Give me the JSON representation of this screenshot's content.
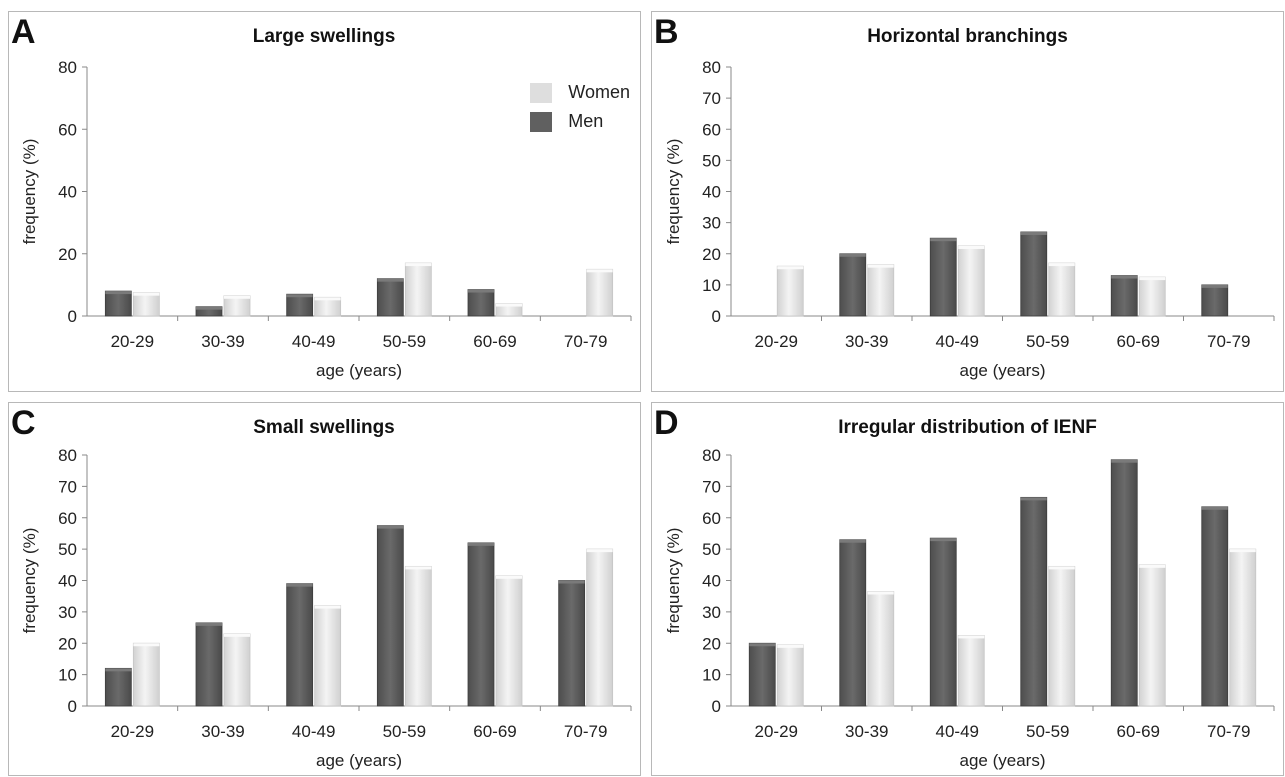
{
  "legend": {
    "women": "Women",
    "men": "Men"
  },
  "colors": {
    "men": "#606060",
    "women": "#e6e6e6"
  },
  "chart_data": [
    {
      "id": "A",
      "type": "bar",
      "title": "Large swellings",
      "xlabel": "age (years)",
      "ylabel": "frequency (%)",
      "ylim": [
        0,
        80
      ],
      "yticks": [
        0,
        20,
        40,
        60,
        80
      ],
      "categories": [
        "20-29",
        "30-39",
        "40-49",
        "50-59",
        "60-69",
        "70-79"
      ],
      "series": [
        {
          "name": "Men",
          "values": [
            8,
            3,
            7,
            12,
            8.5,
            0
          ]
        },
        {
          "name": "Women",
          "values": [
            7.5,
            6.5,
            6,
            17,
            4,
            15
          ]
        }
      ],
      "legend": "top-right"
    },
    {
      "id": "B",
      "type": "bar",
      "title": "Horizontal branchings",
      "xlabel": "age (years)",
      "ylabel": "frequency (%)",
      "ylim": [
        0,
        80
      ],
      "yticks": [
        0,
        10,
        20,
        30,
        40,
        50,
        60,
        70,
        80
      ],
      "categories": [
        "20-29",
        "30-39",
        "40-49",
        "50-59",
        "60-69",
        "70-79"
      ],
      "series": [
        {
          "name": "Men",
          "values": [
            0,
            20,
            25,
            27,
            13,
            10
          ]
        },
        {
          "name": "Women",
          "values": [
            16,
            16.5,
            22.5,
            17,
            12.5,
            0
          ]
        }
      ]
    },
    {
      "id": "C",
      "type": "bar",
      "title": "Small swellings",
      "xlabel": "age (years)",
      "ylabel": "frequency (%)",
      "ylim": [
        0,
        80
      ],
      "yticks": [
        0,
        10,
        20,
        30,
        40,
        50,
        60,
        70,
        80
      ],
      "categories": [
        "20-29",
        "30-39",
        "40-49",
        "50-59",
        "60-69",
        "70-79"
      ],
      "series": [
        {
          "name": "Men",
          "values": [
            12,
            26.5,
            39,
            57.5,
            52,
            40
          ]
        },
        {
          "name": "Women",
          "values": [
            20,
            23,
            32,
            44.5,
            41.5,
            50
          ]
        }
      ]
    },
    {
      "id": "D",
      "type": "bar",
      "title": "Irregular distribution of IENF",
      "xlabel": "age (years)",
      "ylabel": "frequency (%)",
      "ylim": [
        0,
        80
      ],
      "yticks": [
        0,
        10,
        20,
        30,
        40,
        50,
        60,
        70,
        80
      ],
      "categories": [
        "20-29",
        "30-39",
        "40-49",
        "50-59",
        "60-69",
        "70-79"
      ],
      "series": [
        {
          "name": "Men",
          "values": [
            20,
            53,
            53.5,
            66.5,
            78.5,
            63.5
          ]
        },
        {
          "name": "Women",
          "values": [
            19.5,
            36.5,
            22.5,
            44.5,
            45,
            50
          ]
        }
      ]
    }
  ]
}
